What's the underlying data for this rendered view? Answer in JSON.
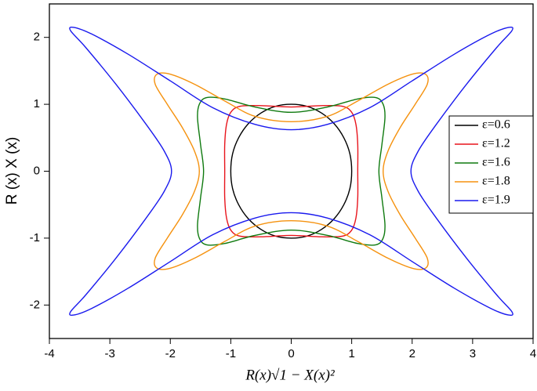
{
  "chart_data": {
    "type": "closed-curve",
    "xlabel": "R(x)√1 − X(x)²",
    "ylabel": "R (x) X (x)",
    "xlim": [
      -4,
      4
    ],
    "ylim": [
      -2.5,
      2.5
    ],
    "xticks": [
      -4,
      -3,
      -2,
      -1,
      0,
      1,
      2,
      3,
      4
    ],
    "yticks": [
      -2,
      -1,
      0,
      1,
      2
    ],
    "grid": false,
    "legend": "right",
    "series": [
      {
        "name": "ε=0.6",
        "color": "#000000",
        "x": [
          1,
          0.97,
          0.87,
          0.71,
          0.5,
          0.26,
          0,
          -0.26,
          -0.5,
          -0.71,
          -0.87,
          -0.97,
          -1,
          -0.97,
          -0.87,
          -0.71,
          -0.5,
          -0.26,
          0,
          0.26,
          0.5,
          0.71,
          0.87,
          0.97,
          1
        ],
        "y": [
          0,
          0.26,
          0.5,
          0.71,
          0.87,
          0.97,
          1,
          0.97,
          0.87,
          0.71,
          0.5,
          0.26,
          0,
          -0.26,
          -0.5,
          -0.71,
          -0.87,
          -0.97,
          -1,
          -0.97,
          -0.87,
          -0.71,
          -0.5,
          -0.26,
          0
        ]
      },
      {
        "name": "ε=1.2",
        "color": "#e8141c",
        "x": [
          1.1,
          1.1,
          1.07,
          1,
          0.85,
          0.5,
          0,
          -0.5,
          -0.85,
          -1,
          -1.07,
          -1.1,
          -1.1,
          -1.1,
          -1.07,
          -1,
          -0.85,
          -0.5,
          0,
          0.5,
          0.85,
          1,
          1.07,
          1.1,
          1.1
        ],
        "y": [
          0,
          0.4,
          0.7,
          0.88,
          0.97,
          0.98,
          0.96,
          0.98,
          0.97,
          0.88,
          0.7,
          0.4,
          0,
          -0.4,
          -0.7,
          -0.88,
          -0.97,
          -0.98,
          -0.96,
          -0.98,
          -0.97,
          -0.88,
          -0.7,
          -0.4,
          0
        ]
      },
      {
        "name": "ε=1.6",
        "color": "#0f7a0f",
        "x": [
          1.45,
          1.5,
          1.55,
          1.52,
          1.4,
          1.1,
          0.6,
          0,
          -0.6,
          -1.1,
          -1.4,
          -1.52,
          -1.55,
          -1.5,
          -1.45,
          -1.5,
          -1.55,
          -1.52,
          -1.4,
          -1.1,
          -0.6,
          0,
          0.6,
          1.1,
          1.4,
          1.52,
          1.55,
          1.5,
          1.45
        ],
        "y": [
          0,
          0.4,
          0.8,
          1,
          1.1,
          1.08,
          0.96,
          0.88,
          0.96,
          1.08,
          1.1,
          1,
          0.8,
          0.4,
          0,
          -0.4,
          -0.8,
          -1,
          -1.1,
          -1.08,
          -0.96,
          -0.88,
          -0.96,
          -1.08,
          -1.1,
          -1,
          -0.8,
          -0.4,
          0
        ]
      },
      {
        "name": "ε=1.8",
        "color": "#f5920f",
        "x": [
          1.52,
          1.6,
          1.8,
          2.05,
          2.25,
          2.22,
          2,
          1.6,
          1.1,
          0.6,
          0,
          -0.6,
          -1.1,
          -1.6,
          -2,
          -2.22,
          -2.25,
          -2.05,
          -1.8,
          -1.6,
          -1.52,
          -1.6,
          -1.8,
          -2.05,
          -2.25,
          -2.22,
          -2,
          -1.6,
          -1.1,
          -0.6,
          0,
          0.6,
          1.1,
          1.6,
          2,
          2.22,
          2.25,
          2.05,
          1.8,
          1.6,
          1.52
        ],
        "y": [
          0,
          0.3,
          0.65,
          1,
          1.3,
          1.45,
          1.45,
          1.3,
          1.05,
          0.82,
          0.74,
          0.82,
          1.05,
          1.3,
          1.45,
          1.45,
          1.3,
          1,
          0.65,
          0.3,
          0,
          -0.3,
          -0.65,
          -1,
          -1.3,
          -1.45,
          -1.45,
          -1.3,
          -1.05,
          -0.82,
          -0.74,
          -0.82,
          -1.05,
          -1.3,
          -1.45,
          -1.45,
          -1.3,
          -1,
          -0.65,
          -0.3,
          0
        ]
      },
      {
        "name": "ε=1.9",
        "color": "#1a1aee",
        "x": [
          1.98,
          2.1,
          2.4,
          2.9,
          3.4,
          3.65,
          3.6,
          3.3,
          2.7,
          2,
          1.3,
          0.6,
          0,
          -0.6,
          -1.3,
          -2,
          -2.7,
          -3.3,
          -3.6,
          -3.65,
          -3.4,
          -2.9,
          -2.4,
          -2.1,
          -1.98,
          -2.1,
          -2.4,
          -2.9,
          -3.4,
          -3.65,
          -3.6,
          -3.3,
          -2.7,
          -2,
          -1.3,
          -0.6,
          0,
          0.6,
          1.3,
          2,
          2.7,
          3.3,
          3.6,
          3.65,
          3.4,
          2.9,
          2.4,
          2.1,
          1.98
        ],
        "y": [
          0,
          0.3,
          0.7,
          1.3,
          1.85,
          2.1,
          2.15,
          2.05,
          1.75,
          1.35,
          0.95,
          0.7,
          0.62,
          0.7,
          0.95,
          1.35,
          1.75,
          2.05,
          2.15,
          2.1,
          1.85,
          1.3,
          0.7,
          0.3,
          0,
          -0.3,
          -0.7,
          -1.3,
          -1.85,
          -2.1,
          -2.15,
          -2.05,
          -1.75,
          -1.35,
          -0.95,
          -0.7,
          -0.62,
          -0.7,
          -0.95,
          -1.35,
          -1.75,
          -2.05,
          -2.15,
          -2.1,
          -1.85,
          -1.3,
          -0.7,
          -0.3,
          0
        ]
      }
    ]
  }
}
